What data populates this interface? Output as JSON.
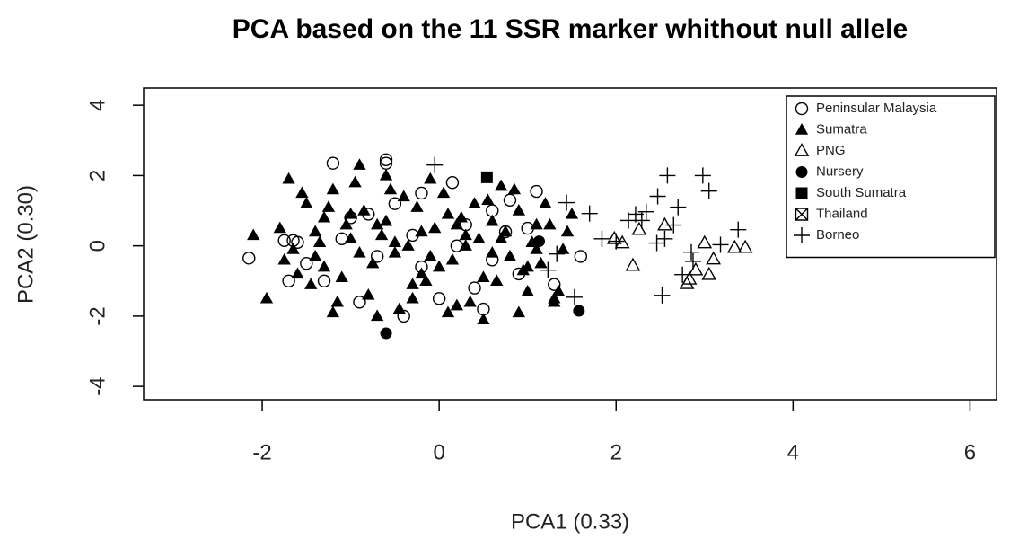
{
  "chart_data": {
    "type": "scatter",
    "title": "PCA based on the 11 SSR marker whithout null allele",
    "x_label": "PCA1 (0.33)",
    "y_label": "PCA2 (0.30)",
    "xlim": [
      -3.34,
      6.3
    ],
    "ylim": [
      -4.38,
      4.49
    ],
    "xticks": [
      -2,
      0,
      2,
      4,
      6
    ],
    "yticks": [
      -4,
      -2,
      0,
      2,
      4
    ],
    "legend": "top-right",
    "grid": false,
    "series": [
      {
        "name": "Peninsular Malaysia",
        "marker": "open-circle",
        "color": "#000000",
        "x": [
          -2.15,
          -1.75,
          -1.65,
          -1.6,
          -1.2,
          -0.6,
          -0.6,
          -0.4,
          0.15,
          1.1,
          0.75,
          -1.0,
          -0.8,
          -1.5,
          -0.2,
          0.3,
          0.6,
          -0.5,
          0.9,
          1.3,
          -1.3,
          0.0,
          -0.9,
          0.4,
          0.8,
          -0.2,
          0.5,
          1.6,
          -1.7,
          0.2,
          -0.3,
          1.0,
          -1.1,
          0.6,
          -0.7
        ],
        "y": [
          -0.35,
          0.15,
          0.15,
          0.1,
          2.35,
          2.35,
          2.45,
          -2.0,
          1.8,
          1.55,
          0.4,
          0.8,
          0.9,
          -0.5,
          -0.6,
          0.6,
          -0.4,
          1.2,
          -0.8,
          -1.1,
          -1.0,
          -1.5,
          -1.6,
          -1.2,
          1.3,
          1.5,
          -1.8,
          -0.3,
          -1.0,
          0.0,
          0.3,
          0.5,
          0.2,
          1.0,
          -0.3
        ]
      },
      {
        "name": "Sumatra",
        "marker": "filled-triangle",
        "color": "#000000",
        "x": [
          -2.1,
          -1.95,
          -1.6,
          -1.8,
          -1.7,
          -1.5,
          -1.4,
          -1.3,
          -1.2,
          -1.1,
          -1.0,
          -0.9,
          -0.85,
          -0.8,
          -0.7,
          -0.6,
          -0.5,
          -0.4,
          -0.3,
          -0.2,
          -0.1,
          0.0,
          0.1,
          0.2,
          0.3,
          0.4,
          0.5,
          0.6,
          0.7,
          0.8,
          0.9,
          1.0,
          1.1,
          1.2,
          1.3,
          1.4,
          1.5,
          -1.75,
          -1.55,
          -1.45,
          -1.35,
          -1.25,
          -1.15,
          -1.05,
          -0.95,
          -0.75,
          -0.65,
          -0.55,
          -0.45,
          -0.35,
          -0.25,
          -0.15,
          -0.05,
          0.05,
          0.15,
          0.25,
          0.35,
          0.45,
          0.55,
          0.65,
          0.75,
          0.85,
          0.95,
          1.05,
          1.15,
          1.25,
          1.35,
          -1.65,
          -1.3,
          -0.9,
          -0.5,
          -0.1,
          0.3,
          0.7,
          1.1,
          -1.4,
          -1.0,
          -0.6,
          -0.2,
          0.2,
          0.6,
          1.0,
          1.45,
          -0.3,
          0.1,
          -0.7,
          0.5,
          -1.2,
          0.9,
          1.3
        ],
        "y": [
          0.3,
          -1.5,
          -0.8,
          0.5,
          1.9,
          1.2,
          -0.3,
          0.8,
          1.6,
          -0.9,
          0.2,
          2.3,
          1.0,
          -1.4,
          0.6,
          2.0,
          -0.2,
          1.4,
          -1.1,
          0.4,
          1.9,
          -0.6,
          0.9,
          -1.7,
          0.3,
          1.2,
          -0.9,
          0.7,
          1.7,
          -0.3,
          1.0,
          -1.3,
          0.6,
          1.2,
          -1.6,
          -0.1,
          0.9,
          -0.4,
          1.5,
          -1.1,
          0.1,
          1.1,
          -1.6,
          0.6,
          1.8,
          -0.5,
          0.3,
          1.6,
          -1.8,
          0.0,
          1.1,
          -1.0,
          0.5,
          1.5,
          -0.4,
          0.8,
          -1.6,
          0.2,
          1.3,
          -1.0,
          0.4,
          1.6,
          -0.7,
          0.1,
          -0.5,
          0.6,
          -1.3,
          -0.1,
          -0.6,
          -0.2,
          0.1,
          -0.3,
          0.0,
          0.2,
          -0.1,
          0.4,
          0.9,
          0.7,
          -0.8,
          0.6,
          -0.2,
          -0.6,
          0.4,
          -1.5,
          -1.9,
          -2.0,
          -2.1,
          -1.9,
          -1.9,
          -1.5
        ]
      },
      {
        "name": "PNG",
        "marker": "open-triangle",
        "color": "#000000",
        "x": [
          2.19,
          1.98,
          2.07,
          2.55,
          2.26,
          2.83,
          2.9,
          3.05,
          3.1,
          3.34,
          3.46,
          3.0,
          2.8
        ],
        "y": [
          -0.56,
          0.2,
          0.08,
          0.59,
          0.46,
          -0.95,
          -0.69,
          -0.82,
          -0.38,
          -0.05,
          -0.05,
          0.08,
          -1.08
        ]
      },
      {
        "name": "Nursery",
        "marker": "filled-circle",
        "color": "#000000",
        "x": [
          -0.6,
          1.58,
          1.13
        ],
        "y": [
          -2.49,
          -1.85,
          0.13
        ]
      },
      {
        "name": "South Sumatra",
        "marker": "filled-square",
        "color": "#000000",
        "x": [
          0.54
        ],
        "y": [
          1.95
        ]
      },
      {
        "name": "Thailand",
        "marker": "boxed-x",
        "color": "#000000",
        "x": [],
        "y": []
      },
      {
        "name": "Borneo",
        "marker": "plus",
        "color": "#000000",
        "x": [
          -0.05,
          1.44,
          1.7,
          1.84,
          2.0,
          2.22,
          2.29,
          2.34,
          2.47,
          2.58,
          2.7,
          2.65,
          2.55,
          2.46,
          2.52,
          2.98,
          3.05,
          2.85,
          2.75,
          3.18,
          3.38,
          2.14,
          1.53,
          1.33,
          1.23,
          2.87
        ],
        "y": [
          2.3,
          1.23,
          0.92,
          0.2,
          0.13,
          0.9,
          0.72,
          0.97,
          1.41,
          2.0,
          1.1,
          0.59,
          0.2,
          0.08,
          -1.41,
          2.0,
          1.56,
          -0.18,
          -0.82,
          0.03,
          0.46,
          0.72,
          -1.46,
          -0.23,
          -0.69,
          -0.44
        ]
      }
    ]
  }
}
